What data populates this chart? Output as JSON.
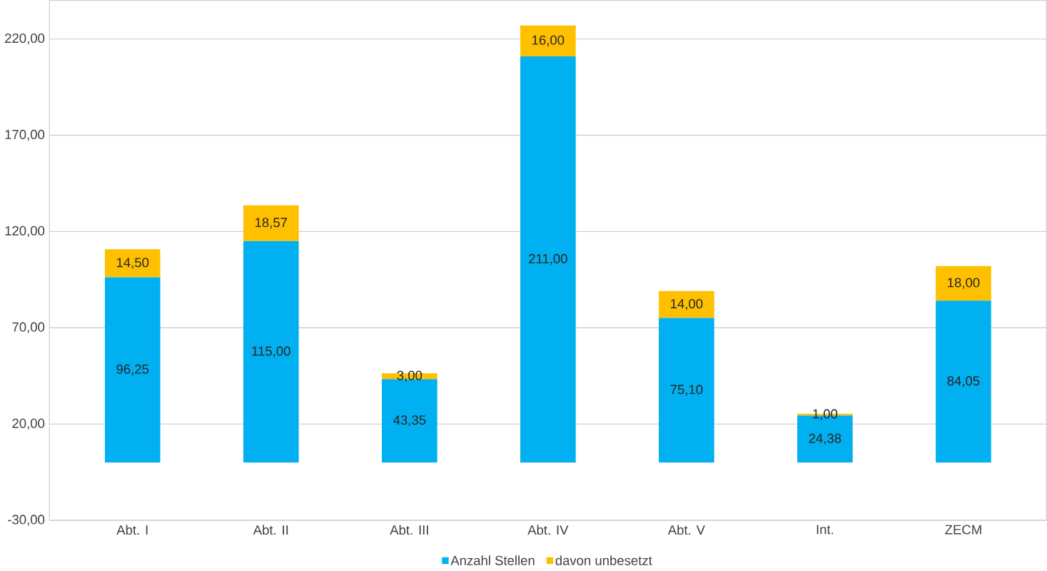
{
  "chart_data": {
    "type": "bar",
    "stacked": true,
    "categories": [
      "Abt. I",
      "Abt. II",
      "Abt. III",
      "Abt. IV",
      "Abt. V",
      "Int.",
      "ZECM"
    ],
    "series": [
      {
        "name": "Anzahl Stellen",
        "color": "#00b0f0",
        "values": [
          96.25,
          115.0,
          43.35,
          211.0,
          75.1,
          24.38,
          84.05
        ],
        "value_labels": [
          "96,25",
          "115,00",
          "43,35",
          "211,00",
          "75,10",
          "24,38",
          "84,05"
        ]
      },
      {
        "name": "davon unbesetzt",
        "color": "#ffc000",
        "values": [
          14.5,
          18.57,
          3.0,
          16.0,
          14.0,
          1.0,
          18.0
        ],
        "value_labels": [
          "14,50",
          "18,57",
          "3,00",
          "16,00",
          "14,00",
          "1,00",
          "18,00"
        ]
      }
    ],
    "ylim": [
      -30,
      240
    ],
    "yticks": [
      {
        "value": -30,
        "label": "-30,00"
      },
      {
        "value": 20,
        "label": "20,00"
      },
      {
        "value": 70,
        "label": "70,00"
      },
      {
        "value": 120,
        "label": "120,00"
      },
      {
        "value": 170,
        "label": "170,00"
      },
      {
        "value": 220,
        "label": "220,00"
      }
    ],
    "grid": "y",
    "legend": "bottom"
  }
}
